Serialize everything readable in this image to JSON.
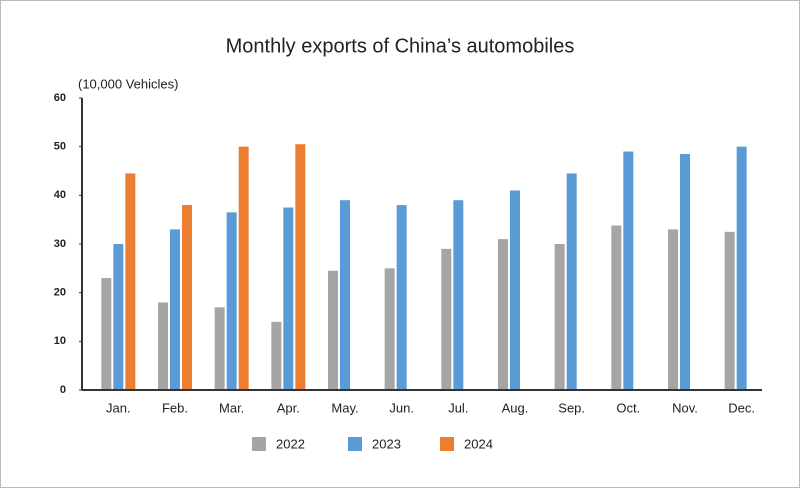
{
  "chart_data": {
    "type": "bar",
    "title": "Monthly exports of China’s automobiles",
    "y_label": "(10,000 Vehicles)",
    "categories": [
      "Jan.",
      "Feb.",
      "Mar.",
      "Apr.",
      "May.",
      "Jun.",
      "Jul.",
      "Aug.",
      "Sep.",
      "Oct.",
      "Nov.",
      "Dec."
    ],
    "series": [
      {
        "name": "2022",
        "color": "#a5a5a5",
        "values": [
          23,
          18,
          17,
          14,
          24.5,
          25,
          29,
          31,
          30,
          33.8,
          33,
          32.5
        ]
      },
      {
        "name": "2023",
        "color": "#5b9bd5",
        "values": [
          30,
          33,
          36.5,
          37.5,
          39,
          38,
          39,
          41,
          44.5,
          49,
          48.5,
          50
        ]
      },
      {
        "name": "2024",
        "color": "#ed7d31",
        "values": [
          44.5,
          38,
          50,
          50.5,
          null,
          null,
          null,
          null,
          null,
          null,
          null,
          null
        ]
      }
    ],
    "ylim": [
      0,
      60
    ],
    "yticks": [
      0,
      10,
      20,
      30,
      40,
      50,
      60
    ],
    "grid": false
  }
}
